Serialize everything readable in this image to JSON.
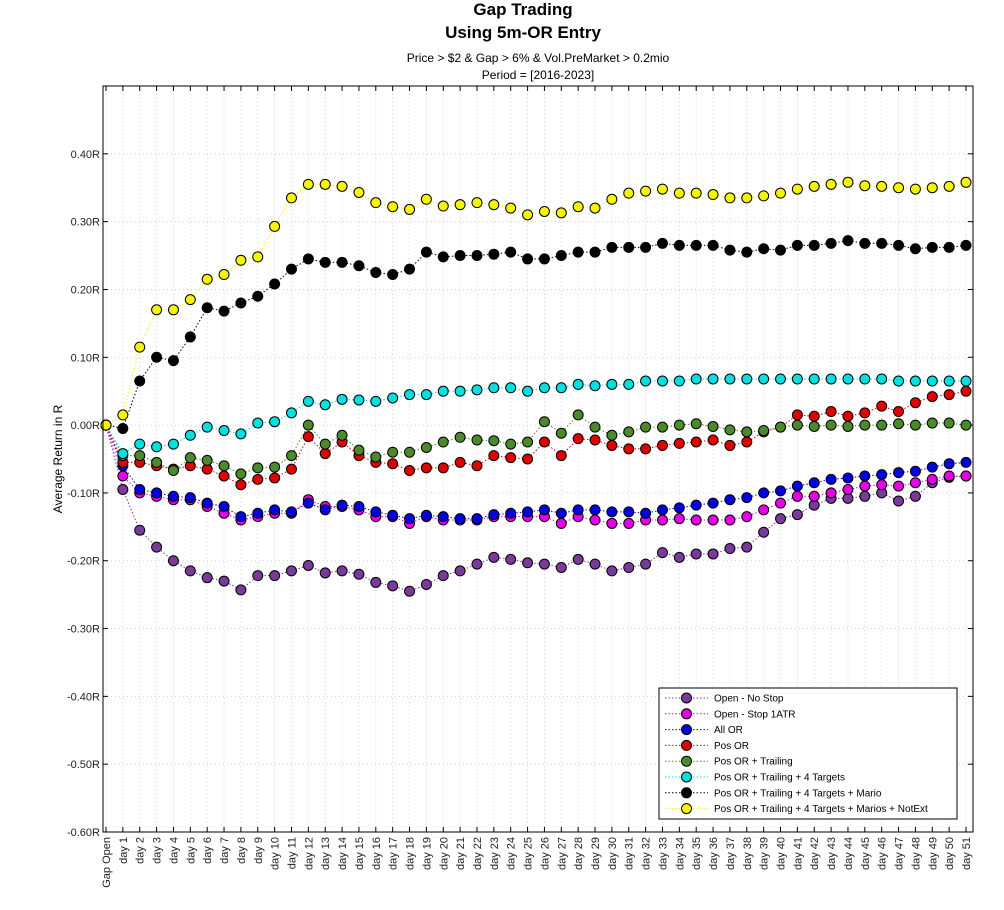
{
  "chart_data": {
    "type": "line",
    "title": "Gap Trading",
    "subtitle": "Using 5m-OR Entry",
    "filter_text": "Price > $2 & Gap > 6% & Vol.PreMarket > 0.2mio",
    "period_text": "Period = [2016-2023]",
    "ylabel": "Average Return in R",
    "xlabel": "",
    "ylim": [
      -0.6,
      0.5
    ],
    "yticks": [
      -0.6,
      -0.5,
      -0.4,
      -0.3,
      -0.2,
      -0.1,
      0.0,
      0.1,
      0.2,
      0.3,
      0.4
    ],
    "ytick_labels": [
      "-0.60R",
      "-0.50R",
      "-0.40R",
      "-0.30R",
      "-0.20R",
      "-0.10R",
      "0.00R",
      "0.10R",
      "0.20R",
      "0.30R",
      "0.40R"
    ],
    "grid": true,
    "legend_position": "bottom-right",
    "categories": [
      "Gap Open",
      "day 1",
      "day 2",
      "day 3",
      "day 4",
      "day 5",
      "day 6",
      "day 7",
      "day 8",
      "day 9",
      "day 10",
      "day 11",
      "day 12",
      "day 13",
      "day 14",
      "day 15",
      "day 16",
      "day 17",
      "day 18",
      "day 19",
      "day 20",
      "day 21",
      "day 22",
      "day 23",
      "day 24",
      "day 25",
      "day 26",
      "day 27",
      "day 28",
      "day 29",
      "day 30",
      "day 31",
      "day 32",
      "day 33",
      "day 34",
      "day 35",
      "day 36",
      "day 37",
      "day 38",
      "day 39",
      "day 40",
      "day 41",
      "day 42",
      "day 43",
      "day 44",
      "day 45",
      "day 46",
      "day 47",
      "day 48",
      "day 49",
      "day 50",
      "day 51"
    ],
    "series": [
      {
        "name": "Open - No Stop",
        "color": "#7a3a99",
        "values": [
          0,
          -0.095,
          -0.155,
          -0.18,
          -0.2,
          -0.215,
          -0.225,
          -0.23,
          -0.243,
          -0.222,
          -0.222,
          -0.215,
          -0.207,
          -0.218,
          -0.215,
          -0.22,
          -0.232,
          -0.237,
          -0.245,
          -0.235,
          -0.222,
          -0.215,
          -0.205,
          -0.195,
          -0.198,
          -0.203,
          -0.205,
          -0.21,
          -0.198,
          -0.205,
          -0.215,
          -0.21,
          -0.205,
          -0.188,
          -0.195,
          -0.19,
          -0.19,
          -0.182,
          -0.18,
          -0.158,
          -0.138,
          -0.132,
          -0.118,
          -0.108,
          -0.108,
          -0.105,
          -0.1,
          -0.112,
          -0.105,
          -0.085,
          -0.077,
          -0.075
        ]
      },
      {
        "name": "Open - Stop 1ATR",
        "color": "#e600e6",
        "values": [
          0,
          -0.075,
          -0.1,
          -0.105,
          -0.11,
          -0.11,
          -0.12,
          -0.13,
          -0.14,
          -0.135,
          -0.13,
          -0.13,
          -0.11,
          -0.12,
          -0.12,
          -0.125,
          -0.135,
          -0.135,
          -0.145,
          -0.135,
          -0.14,
          -0.14,
          -0.14,
          -0.135,
          -0.135,
          -0.135,
          -0.135,
          -0.145,
          -0.135,
          -0.14,
          -0.145,
          -0.145,
          -0.14,
          -0.14,
          -0.138,
          -0.14,
          -0.14,
          -0.14,
          -0.135,
          -0.125,
          -0.115,
          -0.105,
          -0.105,
          -0.1,
          -0.095,
          -0.09,
          -0.088,
          -0.09,
          -0.085,
          -0.08,
          -0.075,
          -0.075
        ]
      },
      {
        "name": "All OR",
        "color": "#0000e0",
        "values": [
          0,
          -0.06,
          -0.095,
          -0.1,
          -0.105,
          -0.107,
          -0.115,
          -0.12,
          -0.135,
          -0.13,
          -0.125,
          -0.128,
          -0.115,
          -0.125,
          -0.118,
          -0.12,
          -0.128,
          -0.133,
          -0.138,
          -0.133,
          -0.135,
          -0.138,
          -0.138,
          -0.132,
          -0.13,
          -0.128,
          -0.125,
          -0.13,
          -0.125,
          -0.125,
          -0.128,
          -0.128,
          -0.13,
          -0.125,
          -0.122,
          -0.118,
          -0.115,
          -0.11,
          -0.107,
          -0.1,
          -0.097,
          -0.09,
          -0.085,
          -0.08,
          -0.078,
          -0.075,
          -0.073,
          -0.07,
          -0.068,
          -0.062,
          -0.057,
          -0.055
        ]
      },
      {
        "name": "Pos OR",
        "color": "#e00000",
        "values": [
          0,
          -0.055,
          -0.055,
          -0.06,
          -0.065,
          -0.06,
          -0.065,
          -0.075,
          -0.088,
          -0.08,
          -0.078,
          -0.065,
          -0.017,
          -0.042,
          -0.025,
          -0.045,
          -0.055,
          -0.057,
          -0.067,
          -0.063,
          -0.063,
          -0.055,
          -0.06,
          -0.045,
          -0.048,
          -0.05,
          -0.025,
          -0.045,
          -0.02,
          -0.022,
          -0.03,
          -0.035,
          -0.035,
          -0.03,
          -0.027,
          -0.025,
          -0.022,
          -0.03,
          -0.025,
          -0.01,
          -0.003,
          0.015,
          0.013,
          0.02,
          0.013,
          0.018,
          0.028,
          0.02,
          0.033,
          0.042,
          0.045,
          0.05
        ]
      },
      {
        "name": "Pos OR + Trailing",
        "color": "#4a8a2a",
        "values": [
          0,
          -0.045,
          -0.045,
          -0.055,
          -0.067,
          -0.048,
          -0.052,
          -0.06,
          -0.072,
          -0.063,
          -0.062,
          -0.045,
          0.0,
          -0.028,
          -0.015,
          -0.037,
          -0.047,
          -0.04,
          -0.04,
          -0.033,
          -0.025,
          -0.018,
          -0.022,
          -0.023,
          -0.028,
          -0.025,
          0.005,
          -0.012,
          0.015,
          -0.003,
          -0.015,
          -0.01,
          -0.003,
          -0.003,
          0.0,
          0.002,
          -0.002,
          -0.007,
          -0.01,
          -0.008,
          -0.003,
          0.0,
          -0.002,
          0.0,
          -0.002,
          0.0,
          0.0,
          0.002,
          0.0,
          0.003,
          0.003,
          0.0
        ]
      },
      {
        "name": "Pos OR + Trailing + 4 Targets",
        "color": "#00e0e0",
        "values": [
          0,
          -0.042,
          -0.028,
          -0.032,
          -0.028,
          -0.015,
          -0.003,
          -0.008,
          -0.013,
          0.003,
          0.005,
          0.018,
          0.035,
          0.03,
          0.038,
          0.037,
          0.035,
          0.04,
          0.045,
          0.045,
          0.05,
          0.05,
          0.052,
          0.055,
          0.055,
          0.05,
          0.055,
          0.055,
          0.06,
          0.058,
          0.06,
          0.06,
          0.065,
          0.065,
          0.065,
          0.068,
          0.068,
          0.068,
          0.068,
          0.068,
          0.068,
          0.068,
          0.068,
          0.068,
          0.068,
          0.068,
          0.068,
          0.065,
          0.065,
          0.065,
          0.065,
          0.065
        ]
      },
      {
        "name": "Pos OR + Trailing + 4 Targets + Mario",
        "color": "#000000",
        "values": [
          0,
          -0.005,
          0.065,
          0.1,
          0.095,
          0.13,
          0.173,
          0.168,
          0.18,
          0.19,
          0.208,
          0.23,
          0.245,
          0.24,
          0.24,
          0.235,
          0.225,
          0.222,
          0.23,
          0.255,
          0.248,
          0.25,
          0.25,
          0.252,
          0.255,
          0.245,
          0.245,
          0.25,
          0.255,
          0.255,
          0.262,
          0.262,
          0.262,
          0.268,
          0.265,
          0.265,
          0.265,
          0.258,
          0.255,
          0.26,
          0.258,
          0.265,
          0.265,
          0.268,
          0.272,
          0.268,
          0.268,
          0.265,
          0.26,
          0.262,
          0.262,
          0.265
        ]
      },
      {
        "name": "Pos OR + Trailing + 4 Targets + Marios + NotExt",
        "color": "#f5f500",
        "values": [
          0,
          0.015,
          0.115,
          0.17,
          0.17,
          0.185,
          0.215,
          0.222,
          0.243,
          0.248,
          0.293,
          0.335,
          0.355,
          0.355,
          0.352,
          0.343,
          0.328,
          0.322,
          0.318,
          0.333,
          0.323,
          0.325,
          0.328,
          0.325,
          0.32,
          0.31,
          0.315,
          0.313,
          0.322,
          0.32,
          0.333,
          0.342,
          0.345,
          0.348,
          0.342,
          0.342,
          0.34,
          0.335,
          0.335,
          0.338,
          0.342,
          0.348,
          0.352,
          0.355,
          0.358,
          0.353,
          0.352,
          0.35,
          0.348,
          0.35,
          0.352,
          0.358
        ]
      }
    ]
  }
}
